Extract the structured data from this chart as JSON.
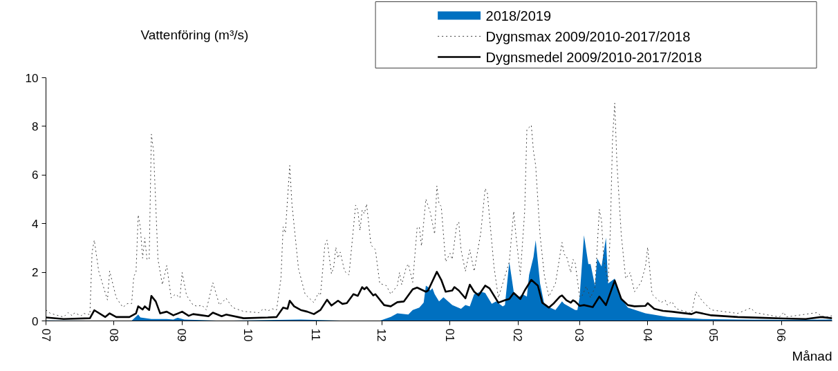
{
  "chart_data": {
    "type": "line",
    "ylabel": "Vattenföring (m³/s)",
    "xlabel": "Månad",
    "xlim": [
      "2018-07-01",
      "2019-06-24"
    ],
    "ylim": [
      0,
      10
    ],
    "yticks": [
      0,
      2,
      4,
      6,
      8,
      10
    ],
    "xticks": [
      {
        "value": "2018-07-01",
        "label": "07"
      },
      {
        "value": "2018-08-01",
        "label": "08"
      },
      {
        "value": "2018-09-01",
        "label": "09"
      },
      {
        "value": "2018-10-01",
        "label": "10"
      },
      {
        "value": "2018-11-01",
        "label": "11"
      },
      {
        "value": "2018-12-01",
        "label": "12"
      },
      {
        "value": "2019-01-01",
        "label": "01"
      },
      {
        "value": "2019-02-01",
        "label": "02"
      },
      {
        "value": "2019-03-01",
        "label": "03"
      },
      {
        "value": "2019-04-01",
        "label": "04"
      },
      {
        "value": "2019-05-01",
        "label": "05"
      },
      {
        "value": "2019-06-01",
        "label": "06"
      }
    ],
    "grid": false,
    "legend": "top right",
    "marker": "none",
    "series": [
      {
        "name": "2018/2019",
        "type": "area",
        "color": "#0070c0",
        "x": [
          "2018-07-01",
          "2018-08-09",
          "2018-08-12",
          "2018-08-13",
          "2018-08-18",
          "2018-08-25",
          "2018-08-28",
          "2018-08-30",
          "2018-09-02",
          "2018-09-19",
          "2018-10-25",
          "2018-11-15",
          "2018-11-30",
          "2018-12-05",
          "2018-12-08",
          "2018-12-13",
          "2018-12-15",
          "2018-12-18",
          "2018-12-20",
          "2018-12-21",
          "2018-12-22",
          "2018-12-23",
          "2018-12-24",
          "2018-12-25",
          "2018-12-27",
          "2018-12-29",
          "2019-01-02",
          "2019-01-06",
          "2019-01-08",
          "2019-01-10",
          "2019-01-12",
          "2019-01-15",
          "2019-01-17",
          "2019-01-20",
          "2019-01-22",
          "2019-01-25",
          "2019-01-26",
          "2019-01-28",
          "2019-01-30",
          "2019-02-01",
          "2019-02-03",
          "2019-02-05",
          "2019-02-06",
          "2019-02-08",
          "2019-02-09",
          "2019-02-11",
          "2019-02-13",
          "2019-02-18",
          "2019-02-21",
          "2019-02-22",
          "2019-02-27",
          "2019-02-28",
          "2019-03-01",
          "2019-03-03",
          "2019-03-05",
          "2019-03-06",
          "2019-03-08",
          "2019-03-09",
          "2019-03-11",
          "2019-03-13",
          "2019-03-14",
          "2019-03-17",
          "2019-03-19",
          "2019-03-23",
          "2019-03-31",
          "2019-04-10",
          "2019-04-26",
          "2019-05-12",
          "2019-06-02",
          "2019-06-24"
        ],
        "values": [
          0.02,
          0.01,
          0.26,
          0.14,
          0.08,
          0.08,
          0.06,
          0.13,
          0.06,
          0.01,
          0.06,
          0.01,
          0.01,
          0.16,
          0.31,
          0.26,
          0.45,
          0.55,
          0.75,
          1.45,
          1.39,
          1.25,
          1.34,
          1.1,
          0.8,
          0.97,
          0.65,
          0.5,
          0.65,
          0.6,
          1.1,
          1.2,
          1.15,
          0.7,
          0.8,
          0.6,
          0.65,
          2.43,
          1.2,
          0.95,
          1.1,
          1.0,
          1.89,
          2.63,
          3.32,
          1.54,
          0.65,
          0.45,
          0.8,
          0.7,
          0.45,
          0.45,
          0.95,
          3.52,
          2.34,
          2.34,
          1.45,
          2.58,
          2.24,
          3.42,
          1.54,
          1.74,
          1.05,
          0.55,
          0.31,
          0.16,
          0.08,
          0.06,
          0.04,
          0.06
        ]
      },
      {
        "name": "Dygnsmax 2009/2010-2017/2018",
        "color": "#404040",
        "line_style": "dotted",
        "x": [
          "2018-07-01",
          "2018-07-03",
          "2018-07-09",
          "2018-07-11",
          "2018-07-13",
          "2018-07-14",
          "2018-07-17",
          "2018-07-18",
          "2018-07-21",
          "2018-07-22",
          "2018-07-23",
          "2018-07-25",
          "2018-07-29",
          "2018-07-30",
          "2018-08-02",
          "2018-08-05",
          "2018-08-07",
          "2018-08-09",
          "2018-08-10",
          "2018-08-11",
          "2018-08-12",
          "2018-08-13",
          "2018-08-14",
          "2018-08-15",
          "2018-08-16",
          "2018-08-17",
          "2018-08-18",
          "2018-08-19",
          "2018-08-21",
          "2018-08-23",
          "2018-08-25",
          "2018-08-27",
          "2018-08-29",
          "2018-08-31",
          "2018-09-01",
          "2018-09-03",
          "2018-09-06",
          "2018-09-08",
          "2018-09-10",
          "2018-09-12",
          "2018-09-15",
          "2018-09-18",
          "2018-09-21",
          "2018-09-24",
          "2018-09-29",
          "2018-10-06",
          "2018-10-08",
          "2018-10-10",
          "2018-10-12",
          "2018-10-14",
          "2018-10-16",
          "2018-10-17",
          "2018-10-18",
          "2018-10-20",
          "2018-10-21",
          "2018-10-24",
          "2018-10-27",
          "2018-10-31",
          "2018-11-02",
          "2018-11-03",
          "2018-11-05",
          "2018-11-06",
          "2018-11-08",
          "2018-11-09",
          "2018-11-10",
          "2018-11-11",
          "2018-11-12",
          "2018-11-14",
          "2018-11-16",
          "2018-11-19",
          "2018-11-20",
          "2018-11-21",
          "2018-11-22",
          "2018-11-23",
          "2018-11-24",
          "2018-11-26",
          "2018-11-28",
          "2018-11-30",
          "2018-12-03",
          "2018-12-05",
          "2018-12-08",
          "2018-12-09",
          "2018-12-10",
          "2018-12-12",
          "2018-12-13",
          "2018-12-15",
          "2018-12-17",
          "2018-12-18",
          "2018-12-19",
          "2018-12-21",
          "2018-12-23",
          "2018-12-25",
          "2018-12-26",
          "2018-12-27",
          "2018-12-28",
          "2018-12-30",
          "2019-01-01",
          "2019-01-02",
          "2019-01-04",
          "2019-01-05",
          "2019-01-06",
          "2019-01-08",
          "2019-01-10",
          "2019-01-12",
          "2019-01-15",
          "2019-01-17",
          "2019-01-18",
          "2019-01-21",
          "2019-01-23",
          "2019-01-26",
          "2019-01-28",
          "2019-01-30",
          "2019-01-31",
          "2019-02-02",
          "2019-02-04",
          "2019-02-05",
          "2019-02-07",
          "2019-02-08",
          "2019-02-09",
          "2019-02-11",
          "2019-02-13",
          "2019-02-15",
          "2019-02-18",
          "2019-02-21",
          "2019-02-22",
          "2019-02-23",
          "2019-02-25",
          "2019-02-26",
          "2019-02-27",
          "2019-03-01",
          "2019-03-02",
          "2019-03-04",
          "2019-03-06",
          "2019-03-08",
          "2019-03-10",
          "2019-03-11",
          "2019-03-12",
          "2019-03-14",
          "2019-03-15",
          "2019-03-16",
          "2019-03-17",
          "2019-03-18",
          "2019-03-20",
          "2019-03-22",
          "2019-03-24",
          "2019-03-26",
          "2019-03-29",
          "2019-03-31",
          "2019-04-01",
          "2019-04-03",
          "2019-04-07",
          "2019-04-09",
          "2019-04-10",
          "2019-04-12",
          "2019-04-14",
          "2019-04-21",
          "2019-04-23",
          "2019-04-26",
          "2019-04-30",
          "2019-05-12",
          "2019-05-18",
          "2019-05-20",
          "2019-05-31",
          "2019-06-02",
          "2019-06-03",
          "2019-06-17",
          "2019-06-19",
          "2019-06-21",
          "2019-06-24"
        ],
        "values": [
          0.45,
          0.31,
          0.16,
          0.34,
          0.21,
          0.33,
          0.21,
          0.31,
          0.26,
          2.83,
          3.32,
          2.05,
          0.86,
          2.05,
          0.95,
          0.56,
          0.71,
          0.71,
          1.84,
          1.99,
          4.36,
          3.83,
          2.58,
          3.41,
          2.53,
          2.53,
          7.68,
          6.98,
          2.53,
          1.49,
          2.28,
          0.95,
          1.1,
          0.95,
          1.99,
          1.05,
          0.65,
          0.6,
          0.65,
          0.45,
          1.57,
          0.65,
          0.93,
          0.55,
          0.39,
          0.34,
          0.5,
          0.41,
          0.5,
          0.45,
          1.74,
          3.87,
          3.62,
          6.39,
          4.81,
          2.14,
          1.1,
          0.75,
          1.15,
          1.05,
          3.12,
          3.32,
          1.94,
          2.19,
          3.03,
          2.58,
          2.83,
          2.04,
          1.89,
          4.76,
          4.56,
          3.72,
          4.56,
          4.41,
          4.81,
          3.12,
          2.93,
          1.54,
          1.45,
          1.1,
          1.45,
          1.99,
          1.49,
          2.19,
          2.34,
          1.59,
          3.82,
          3.87,
          3.08,
          5.01,
          4.46,
          3.57,
          5.55,
          4.81,
          4.71,
          2.43,
          2.78,
          2.53,
          3.92,
          4.07,
          2.93,
          2.04,
          2.93,
          2.04,
          3.62,
          5.45,
          5.25,
          2.24,
          0.95,
          1.84,
          2.43,
          4.51,
          3.52,
          1.89,
          4.51,
          7.87,
          8.05,
          6.98,
          6.39,
          3.52,
          1.84,
          1.0,
          1.54,
          3.23,
          2.73,
          2.68,
          1.99,
          2.53,
          2.38,
          1.0,
          1.0,
          1.42,
          0.95,
          1.39,
          4.59,
          4.11,
          2.53,
          1.59,
          3.72,
          7.48,
          8.96,
          6.49,
          3.52,
          1.74,
          1.99,
          1.2,
          1.59,
          2.24,
          3.03,
          1.1,
          0.75,
          0.85,
          0.65,
          0.8,
          0.5,
          0.31,
          1.2,
          0.8,
          0.45,
          0.31,
          0.53,
          0.34,
          0.16,
          0.36,
          0.16,
          0.34,
          0.21,
          0.16,
          0.21
        ]
      },
      {
        "name": "Dygnsmedel 2009/2010-2017/2018",
        "color": "#000000",
        "line_style": "solid",
        "x": [
          "2018-07-01",
          "2018-07-09",
          "2018-07-21",
          "2018-07-23",
          "2018-07-28",
          "2018-07-30",
          "2018-08-02",
          "2018-08-08",
          "2018-08-11",
          "2018-08-12",
          "2018-08-14",
          "2018-08-15",
          "2018-08-17",
          "2018-08-18",
          "2018-08-20",
          "2018-08-22",
          "2018-08-25",
          "2018-08-28",
          "2018-09-01",
          "2018-09-04",
          "2018-09-06",
          "2018-09-10",
          "2018-09-13",
          "2018-09-15",
          "2018-09-19",
          "2018-09-21",
          "2018-09-29",
          "2018-10-10",
          "2018-10-14",
          "2018-10-17",
          "2018-10-19",
          "2018-10-20",
          "2018-10-22",
          "2018-10-25",
          "2018-10-28",
          "2018-10-31",
          "2018-11-03",
          "2018-11-06",
          "2018-11-08",
          "2018-11-11",
          "2018-11-13",
          "2018-11-15",
          "2018-11-18",
          "2018-11-20",
          "2018-11-22",
          "2018-11-23",
          "2018-11-24",
          "2018-11-27",
          "2018-11-28",
          "2018-12-02",
          "2018-12-05",
          "2018-12-08",
          "2018-12-11",
          "2018-12-13",
          "2018-12-15",
          "2018-12-17",
          "2018-12-21",
          "2018-12-22",
          "2018-12-26",
          "2018-12-28",
          "2018-12-30",
          "2019-01-02",
          "2019-01-03",
          "2019-01-05",
          "2019-01-08",
          "2019-01-10",
          "2019-01-12",
          "2019-01-14",
          "2019-01-17",
          "2019-01-19",
          "2019-01-23",
          "2019-01-26",
          "2019-01-28",
          "2019-01-30",
          "2019-02-02",
          "2019-02-04",
          "2019-02-07",
          "2019-02-10",
          "2019-02-12",
          "2019-02-15",
          "2019-02-17",
          "2019-02-20",
          "2019-02-21",
          "2019-02-23",
          "2019-02-25",
          "2019-02-26",
          "2019-02-27",
          "2019-03-01",
          "2019-03-03",
          "2019-03-07",
          "2019-03-10",
          "2019-03-13",
          "2019-03-17",
          "2019-03-20",
          "2019-03-23",
          "2019-03-26",
          "2019-03-31",
          "2019-04-01",
          "2019-04-04",
          "2019-04-08",
          "2019-04-12",
          "2019-04-21",
          "2019-04-23",
          "2019-04-30",
          "2019-05-12",
          "2019-05-22",
          "2019-06-02",
          "2019-06-12",
          "2019-06-19",
          "2019-06-24"
        ],
        "values": [
          0.14,
          0.08,
          0.11,
          0.44,
          0.16,
          0.31,
          0.16,
          0.16,
          0.31,
          0.6,
          0.47,
          0.6,
          0.45,
          1.03,
          0.8,
          0.31,
          0.38,
          0.23,
          0.38,
          0.21,
          0.28,
          0.23,
          0.19,
          0.34,
          0.19,
          0.26,
          0.11,
          0.14,
          0.16,
          0.55,
          0.5,
          0.83,
          0.6,
          0.45,
          0.38,
          0.28,
          0.45,
          0.87,
          0.63,
          0.83,
          0.7,
          0.73,
          1.1,
          1.03,
          1.39,
          1.3,
          1.39,
          1.05,
          1.1,
          0.65,
          0.6,
          0.77,
          0.8,
          1.05,
          1.3,
          1.37,
          1.2,
          1.25,
          2.02,
          1.69,
          1.2,
          1.25,
          1.39,
          1.25,
          0.93,
          1.49,
          1.2,
          1.05,
          1.45,
          1.34,
          0.75,
          0.85,
          0.9,
          1.15,
          0.9,
          1.25,
          1.69,
          1.45,
          0.75,
          0.55,
          0.7,
          1.0,
          1.05,
          0.85,
          0.75,
          0.85,
          0.8,
          0.62,
          0.65,
          0.57,
          1.0,
          0.65,
          1.66,
          0.9,
          0.65,
          0.6,
          0.62,
          0.73,
          0.5,
          0.41,
          0.38,
          0.28,
          0.36,
          0.23,
          0.16,
          0.13,
          0.1,
          0.08,
          0.16,
          0.11
        ]
      }
    ]
  }
}
